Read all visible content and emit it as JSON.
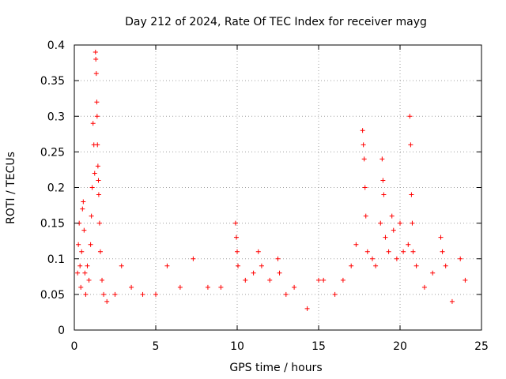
{
  "chart_data": {
    "type": "scatter",
    "title": "Day 212 of 2024, Rate Of TEC Index for receiver mayg",
    "xlabel": "GPS time / hours",
    "ylabel": "ROTI / TECUs",
    "xlim": [
      0,
      25
    ],
    "ylim": [
      0,
      0.4
    ],
    "x_ticks": [
      "0",
      "5",
      "10",
      "15",
      "20",
      "25"
    ],
    "y_ticks": [
      "0",
      "0.05",
      "0.1",
      "0.15",
      "0.2",
      "0.25",
      "0.3",
      "0.35",
      "0.4"
    ],
    "grid": true,
    "marker": "+",
    "color": "#ff0000",
    "series": [
      {
        "points": [
          [
            0.2,
            0.08
          ],
          [
            0.25,
            0.12
          ],
          [
            0.3,
            0.15
          ],
          [
            0.35,
            0.09
          ],
          [
            0.4,
            0.06
          ],
          [
            0.45,
            0.11
          ],
          [
            0.5,
            0.17
          ],
          [
            0.55,
            0.18
          ],
          [
            0.6,
            0.14
          ],
          [
            0.65,
            0.08
          ],
          [
            0.7,
            0.05
          ],
          [
            0.8,
            0.09
          ],
          [
            0.9,
            0.07
          ],
          [
            1.0,
            0.12
          ],
          [
            1.05,
            0.16
          ],
          [
            1.1,
            0.2
          ],
          [
            1.15,
            0.29
          ],
          [
            1.2,
            0.26
          ],
          [
            1.25,
            0.22
          ],
          [
            1.3,
            0.39
          ],
          [
            1.32,
            0.38
          ],
          [
            1.35,
            0.36
          ],
          [
            1.38,
            0.32
          ],
          [
            1.4,
            0.3
          ],
          [
            1.42,
            0.26
          ],
          [
            1.45,
            0.23
          ],
          [
            1.48,
            0.21
          ],
          [
            1.5,
            0.19
          ],
          [
            1.55,
            0.15
          ],
          [
            1.6,
            0.11
          ],
          [
            1.7,
            0.07
          ],
          [
            1.8,
            0.05
          ],
          [
            2.0,
            0.04
          ],
          [
            2.5,
            0.05
          ],
          [
            2.9,
            0.09
          ],
          [
            3.5,
            0.06
          ],
          [
            4.2,
            0.05
          ],
          [
            5.0,
            0.05
          ],
          [
            5.7,
            0.09
          ],
          [
            6.5,
            0.06
          ],
          [
            7.3,
            0.1
          ],
          [
            8.2,
            0.06
          ],
          [
            9.0,
            0.06
          ],
          [
            9.9,
            0.15
          ],
          [
            9.95,
            0.13
          ],
          [
            10.0,
            0.11
          ],
          [
            10.05,
            0.09
          ],
          [
            10.5,
            0.07
          ],
          [
            11.0,
            0.08
          ],
          [
            11.3,
            0.11
          ],
          [
            11.5,
            0.09
          ],
          [
            12.0,
            0.07
          ],
          [
            12.5,
            0.1
          ],
          [
            12.6,
            0.08
          ],
          [
            13.0,
            0.05
          ],
          [
            13.5,
            0.06
          ],
          [
            14.3,
            0.03
          ],
          [
            15.0,
            0.07
          ],
          [
            15.3,
            0.07
          ],
          [
            16.0,
            0.05
          ],
          [
            16.5,
            0.07
          ],
          [
            17.0,
            0.09
          ],
          [
            17.3,
            0.12
          ],
          [
            17.7,
            0.28
          ],
          [
            17.75,
            0.26
          ],
          [
            17.8,
            0.24
          ],
          [
            17.85,
            0.2
          ],
          [
            17.9,
            0.16
          ],
          [
            18.0,
            0.11
          ],
          [
            18.3,
            0.1
          ],
          [
            18.5,
            0.09
          ],
          [
            18.8,
            0.15
          ],
          [
            18.9,
            0.24
          ],
          [
            18.95,
            0.21
          ],
          [
            19.0,
            0.19
          ],
          [
            19.1,
            0.13
          ],
          [
            19.3,
            0.11
          ],
          [
            19.5,
            0.16
          ],
          [
            19.6,
            0.14
          ],
          [
            19.8,
            0.1
          ],
          [
            20.0,
            0.15
          ],
          [
            20.2,
            0.11
          ],
          [
            20.5,
            0.12
          ],
          [
            20.6,
            0.3
          ],
          [
            20.65,
            0.26
          ],
          [
            20.7,
            0.19
          ],
          [
            20.75,
            0.15
          ],
          [
            20.8,
            0.11
          ],
          [
            21.0,
            0.09
          ],
          [
            21.5,
            0.06
          ],
          [
            22.0,
            0.08
          ],
          [
            22.5,
            0.13
          ],
          [
            22.6,
            0.11
          ],
          [
            22.8,
            0.09
          ],
          [
            23.2,
            0.04
          ],
          [
            23.7,
            0.1
          ],
          [
            24.0,
            0.07
          ]
        ]
      }
    ]
  }
}
